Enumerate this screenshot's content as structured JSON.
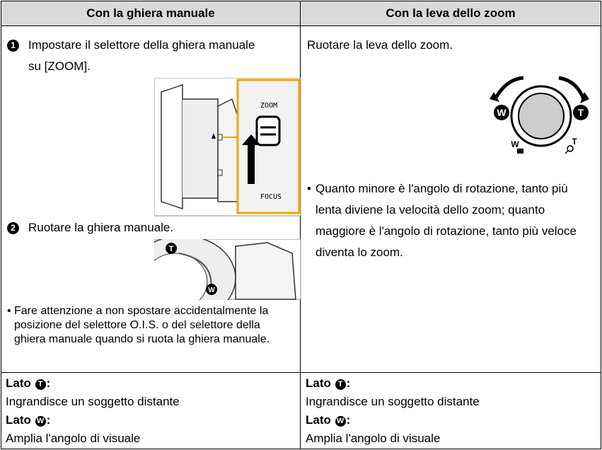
{
  "table": {
    "header": [
      "Con la ghiera manuale",
      "Con la leva dello zoom"
    ],
    "left": {
      "step1": {
        "number": "1",
        "text": "Impostare il selettore della ghiera manuale su [ZOOM]."
      },
      "figure1": {
        "labels": [
          "ZOOM",
          "FOCUS"
        ]
      },
      "step2": {
        "number": "2",
        "text": "Ruotare la ghiera manuale."
      },
      "figure2": {
        "labels": [
          "T",
          "W"
        ]
      },
      "note": {
        "bullet": "•",
        "text": "Fare attenzione a non spostare accidentalmente la posizione del selettore O.I.S. o del selettore della ghiera manuale quando si ruota la ghiera manuale."
      }
    },
    "right": {
      "step": "Ruotare la leva dello zoom.",
      "figure": {
        "labels": [
          "W",
          "T",
          "W",
          "T"
        ]
      },
      "note": {
        "bullet": "•",
        "text": "Quanto minore è l'angolo di rotazione, tanto più lenta diviene la velocità dello zoom; quanto maggiore è l'angolo di rotazione, tanto più veloce diventa lo zoom."
      }
    },
    "footer": [
      {
        "tele": {
          "label": "Lato",
          "icon": "T",
          "suffix": ":"
        },
        "tele_text": "Ingrandisce un soggetto distante",
        "wide": {
          "label": "Lato",
          "icon": "W",
          "suffix": ":"
        },
        "wide_text": "Amplia l'angolo di visuale"
      },
      {
        "tele": {
          "label": "Lato",
          "icon": "T",
          "suffix": ":"
        },
        "tele_text": "Ingrandisce un soggetto distante",
        "wide": {
          "label": "Lato",
          "icon": "W",
          "suffix": ":"
        },
        "wide_text": "Amplia l'angolo di visuale"
      }
    ]
  }
}
